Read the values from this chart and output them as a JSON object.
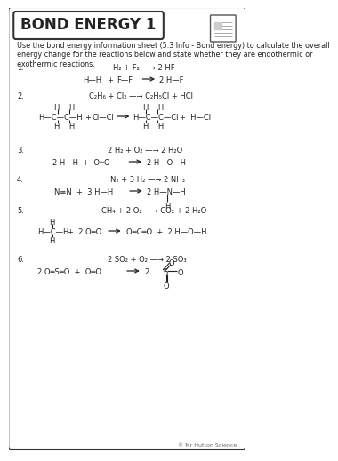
{
  "title": "BOND ENERGY 1",
  "instruction": "Use the bond energy information sheet (5.3 Info - Bond energy) to calculate the overall\nenergy change for the reactions below and state whether they are endothermic or\nexothermic reactions.",
  "background": "#ffffff",
  "border_color": "#222222",
  "text_color": "#222222",
  "copyright": "© Mr Hutton Science",
  "fs_base": 6.0,
  "fs_title": 12.0,
  "fs_instruction": 5.8,
  "fs_equation": 6.0,
  "fs_struct": 6.0
}
